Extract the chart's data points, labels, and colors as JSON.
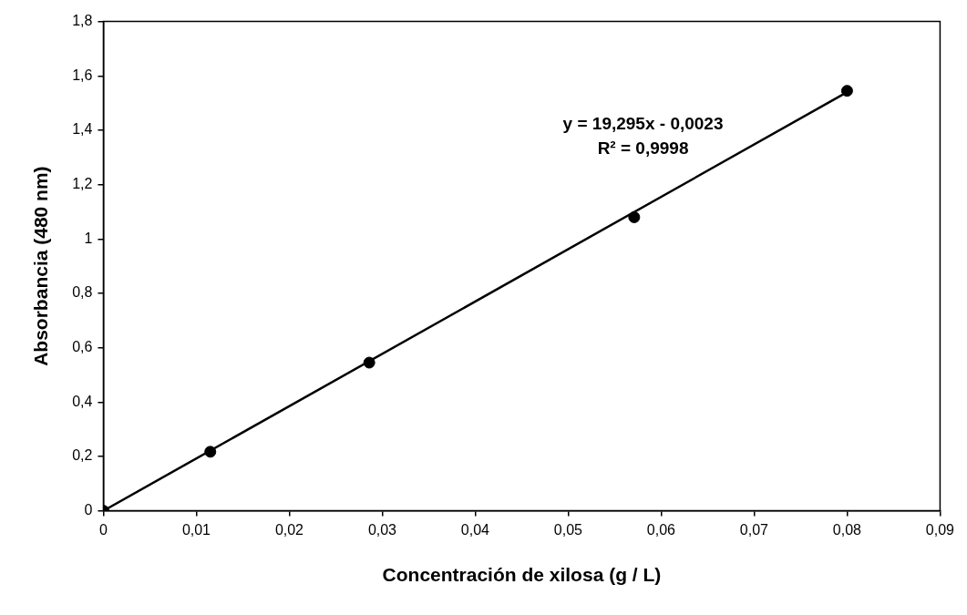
{
  "chart_data": {
    "type": "scatter",
    "xlabel": "Concentración de xilosa (g / L)",
    "ylabel": "Absorbancia (480 nm)",
    "annotations": [
      "y = 19,295x - 0,0023",
      "R² = 0,9998"
    ],
    "x": [
      0,
      0.0115,
      0.0286,
      0.0571,
      0.08
    ],
    "series": [
      {
        "color": "#000000",
        "marker": "circle",
        "values": [
          0,
          0.217,
          0.545,
          1.08,
          1.545
        ]
      },
      {
        "type": "line",
        "color": "#000000",
        "marker": "none",
        "x": [
          0,
          0.08
        ],
        "values": [
          0,
          1.54
        ]
      }
    ],
    "xlim": [
      0,
      0.09
    ],
    "xticks": [
      0,
      {
        "value": 0.01,
        "label": "0,01"
      },
      {
        "value": 0.02,
        "label": "0,02"
      },
      {
        "value": 0.03,
        "label": "0,03"
      },
      {
        "value": 0.04,
        "label": "0,04"
      },
      {
        "value": 0.05,
        "label": "0,05"
      },
      {
        "value": 0.06,
        "label": "0,06"
      },
      {
        "value": 0.07,
        "label": "0,07"
      },
      {
        "value": 0.08,
        "label": "0,08"
      },
      {
        "value": 0.09,
        "label": "0,09"
      }
    ],
    "ylim": [
      0,
      1.8
    ],
    "yticks": [
      0,
      {
        "value": 0.2,
        "label": "0,2"
      },
      {
        "value": 0.4,
        "label": "0,4"
      },
      {
        "value": 0.6,
        "label": "0,6"
      },
      {
        "value": 0.8,
        "label": "0,8"
      },
      1,
      {
        "value": 1.2,
        "label": "1,2"
      },
      {
        "value": 1.4,
        "label": "1,4"
      },
      {
        "value": 1.6,
        "label": "1,6"
      },
      {
        "value": 1.8,
        "label": "1,8"
      }
    ],
    "grid": false,
    "legend": false
  }
}
